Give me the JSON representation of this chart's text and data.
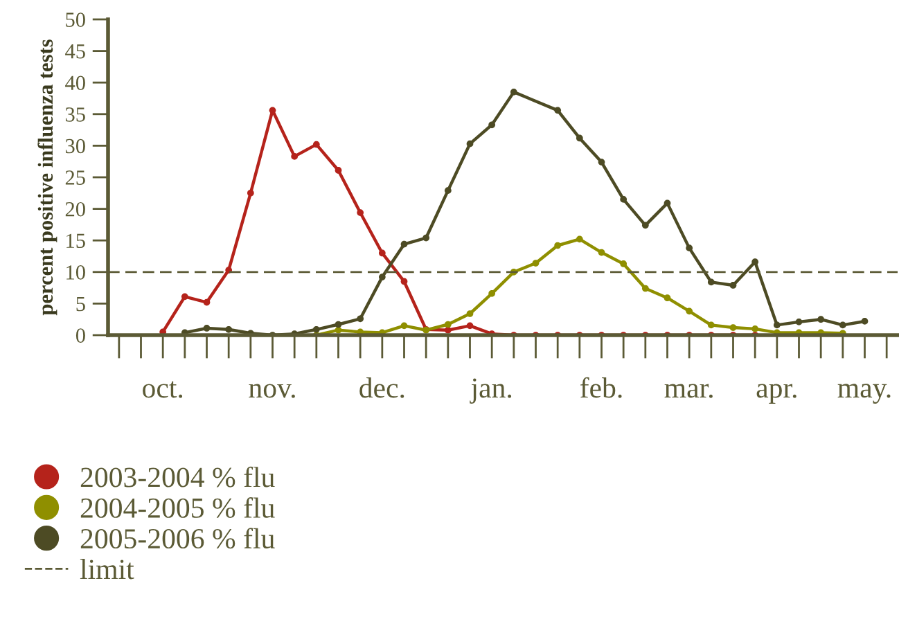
{
  "chart_data": {
    "type": "line",
    "ylabel": "percent positive influenza tests",
    "categories": [
      null,
      null,
      "oct.",
      null,
      null,
      null,
      null,
      "nov.",
      null,
      null,
      null,
      null,
      "dec.",
      null,
      null,
      null,
      null,
      "jan.",
      null,
      null,
      null,
      null,
      "feb.",
      null,
      null,
      null,
      "mar.",
      null,
      null,
      null,
      "apr.",
      null,
      null,
      null,
      "may.",
      null
    ],
    "ylim": [
      0,
      50
    ],
    "yticks": [
      0,
      5,
      10,
      15,
      20,
      25,
      30,
      35,
      40,
      45,
      50
    ],
    "grid": false,
    "legend": "bottom left",
    "marker": "circle",
    "line_style": "solid",
    "series": [
      {
        "name": "2003-2004 % flu",
        "color": "#b5231b",
        "values": [
          null,
          null,
          0.5,
          6.1,
          5.2,
          10.3,
          22.5,
          35.6,
          28.3,
          30.2,
          26.1,
          19.4,
          13.0,
          8.5,
          0.9,
          0.8,
          1.5,
          0.2,
          0,
          0,
          0,
          0,
          0,
          0,
          0,
          0,
          0,
          0,
          0,
          0,
          null,
          null,
          null,
          null,
          null,
          null
        ]
      },
      {
        "name": "2004-2005 % flu",
        "color": "#8f8f00",
        "values": [
          null,
          null,
          null,
          null,
          null,
          null,
          null,
          null,
          null,
          0,
          0.8,
          0.5,
          0.4,
          1.5,
          0.8,
          1.7,
          3.4,
          6.6,
          10.0,
          11.4,
          14.2,
          15.2,
          13.1,
          11.3,
          7.4,
          5.9,
          3.8,
          1.6,
          1.2,
          1.0,
          0.4,
          0.4,
          0.4,
          0.3,
          null,
          null
        ]
      },
      {
        "name": "2005-2006 % flu",
        "color": "#4d4b24",
        "values": [
          null,
          null,
          null,
          0.4,
          1.1,
          0.9,
          0.3,
          0,
          0.2,
          0.9,
          1.7,
          2.6,
          9.2,
          14.4,
          15.4,
          22.9,
          30.3,
          33.3,
          38.5,
          null,
          35.6,
          31.2,
          27.4,
          21.5,
          17.4,
          20.9,
          13.8,
          8.4,
          7.9,
          11.6,
          1.6,
          2.1,
          2.5,
          1.6,
          2.2,
          null
        ]
      }
    ],
    "ref_lines": [
      {
        "axis": "y",
        "value": 10,
        "label": "limit",
        "color": "#5b5a35",
        "line_style": "dashed"
      }
    ]
  }
}
